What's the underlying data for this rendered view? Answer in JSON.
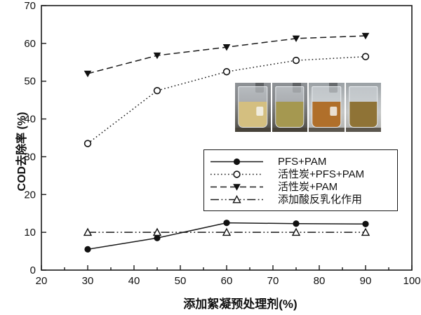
{
  "chart_data": {
    "type": "line",
    "title": "",
    "xlabel": "添加絮凝预处理剂(%)",
    "ylabel": "COD去除率 (%)",
    "xlim": [
      20,
      100
    ],
    "ylim": [
      0,
      70
    ],
    "x_ticks": [
      20,
      30,
      40,
      50,
      60,
      70,
      80,
      90,
      100
    ],
    "x_minor_ticks": [
      25,
      35,
      45,
      55,
      65,
      75,
      85,
      95
    ],
    "y_ticks": [
      0,
      10,
      20,
      30,
      40,
      50,
      60,
      70
    ],
    "grid": false,
    "legend_position": "inside lower-right",
    "line_color": "#1a1a1a",
    "x": [
      30,
      45,
      60,
      75,
      90
    ],
    "series": [
      {
        "name": "PFS+PAM",
        "marker": "filled-circle",
        "line_style": "solid",
        "values": [
          5.5,
          8.5,
          12.5,
          12.3,
          12.2
        ]
      },
      {
        "name": "活性炭+PFS+PAM",
        "marker": "open-circle",
        "line_style": "dotted",
        "values": [
          33.5,
          47.5,
          52.5,
          55.5,
          56.5
        ]
      },
      {
        "name": "活性炭+PAM",
        "marker": "filled-triangle-down",
        "line_style": "dashed",
        "values": [
          52.0,
          56.8,
          59.0,
          61.3,
          62.0
        ]
      },
      {
        "name": "添加酸反乳化作用",
        "marker": "open-triangle-up",
        "line_style": "dash-dot-dot",
        "values": [
          10,
          10,
          10,
          10,
          10
        ]
      }
    ]
  },
  "inset": {
    "description": "photo of four beakers with treated wastewater samples",
    "beakers": [
      {
        "liquid_color": "#d4bf80"
      },
      {
        "liquid_color": "#a59850"
      },
      {
        "liquid_color": "#b06f2a"
      },
      {
        "liquid_color": "#8f7336"
      }
    ]
  }
}
